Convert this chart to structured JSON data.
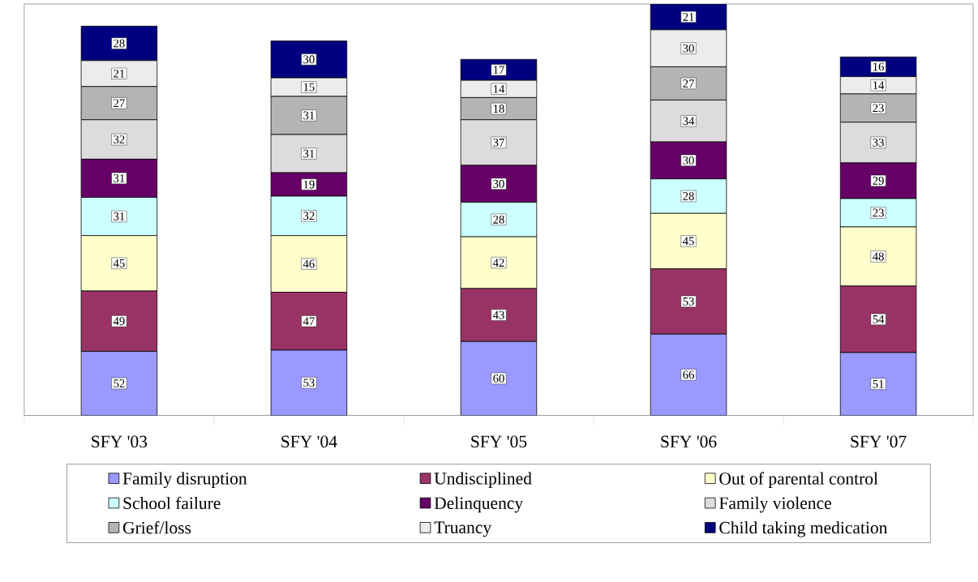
{
  "chart_data": {
    "type": "bar",
    "stacked": true,
    "data_labels": true,
    "legend": "bottom",
    "categories": [
      "SFY '03",
      "SFY '04",
      "SFY '05",
      "SFY '06",
      "SFY '07"
    ],
    "series": [
      {
        "name": "Family disruption",
        "color": "#9999ff",
        "values": [
          52,
          53,
          60,
          66,
          51
        ]
      },
      {
        "name": "Undisciplined",
        "color": "#993366",
        "values": [
          49,
          47,
          43,
          53,
          54
        ]
      },
      {
        "name": "Out of parental control",
        "color": "#ffffcc",
        "values": [
          45,
          46,
          42,
          45,
          48
        ]
      },
      {
        "name": "School failure",
        "color": "#ccffff",
        "values": [
          31,
          32,
          28,
          28,
          23
        ]
      },
      {
        "name": "Delinquency",
        "color": "#660066",
        "values": [
          31,
          19,
          30,
          30,
          29
        ]
      },
      {
        "name": "Family violence",
        "color": "#dcdcdc",
        "values": [
          32,
          31,
          37,
          34,
          33
        ]
      },
      {
        "name": "Grief/loss",
        "color": "#b4b4b4",
        "values": [
          27,
          31,
          18,
          27,
          23
        ]
      },
      {
        "name": "Truancy",
        "color": "#ececec",
        "values": [
          21,
          15,
          14,
          30,
          14
        ]
      },
      {
        "name": "Child taking medication",
        "color": "#000080",
        "values": [
          28,
          30,
          17,
          21,
          16
        ]
      }
    ]
  }
}
